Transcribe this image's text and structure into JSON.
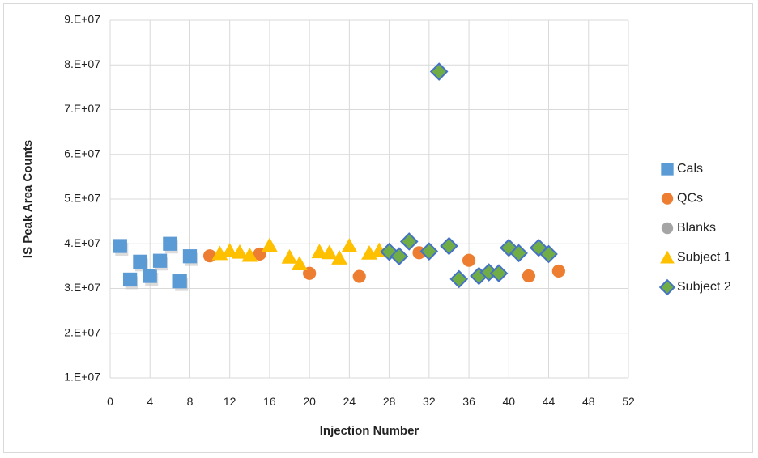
{
  "chart_data": {
    "type": "scatter",
    "title": "",
    "xlabel": "Injection Number",
    "ylabel": "IS Peak Area Counts",
    "xlim": [
      0,
      52
    ],
    "ylim": [
      10000000,
      90000000
    ],
    "x_ticks": [
      0,
      4,
      8,
      12,
      16,
      20,
      24,
      28,
      32,
      36,
      40,
      44,
      48,
      52
    ],
    "x_tick_labels": [
      "0",
      "4",
      "8",
      "12",
      "16",
      "20",
      "24",
      "28",
      "32",
      "36",
      "40",
      "44",
      "48",
      "52"
    ],
    "y_ticks": [
      10000000,
      20000000,
      30000000,
      40000000,
      50000000,
      60000000,
      70000000,
      80000000,
      90000000
    ],
    "y_tick_labels": [
      "1.E+07",
      "2.E+07",
      "3.E+07",
      "4.E+07",
      "5.E+07",
      "6.E+07",
      "7.E+07",
      "8.E+07",
      "9.E+07"
    ],
    "grid": true,
    "legend_position": "right",
    "series": [
      {
        "name": "Cals",
        "marker": "square",
        "color": "#5b9bd5",
        "points": [
          [
            1,
            39.5
          ],
          [
            2,
            32.0
          ],
          [
            3,
            36.0
          ],
          [
            4,
            32.8
          ],
          [
            5,
            36.2
          ],
          [
            6,
            40.0
          ],
          [
            7,
            31.6
          ],
          [
            8,
            37.2
          ]
        ]
      },
      {
        "name": "QCs",
        "marker": "circle",
        "color": "#ed7d31",
        "points": [
          [
            10,
            37.3
          ],
          [
            15,
            37.7
          ],
          [
            20,
            33.4
          ],
          [
            25,
            32.7
          ],
          [
            31,
            38.0
          ],
          [
            36,
            36.3
          ],
          [
            42,
            32.8
          ],
          [
            45,
            33.9
          ]
        ]
      },
      {
        "name": "Blanks",
        "marker": "circle",
        "color": "#a5a5a5",
        "points": []
      },
      {
        "name": "Subject 1",
        "marker": "triangle",
        "color": "#ffc000",
        "points": [
          [
            11,
            37.8
          ],
          [
            12,
            38.4
          ],
          [
            13,
            38.1
          ],
          [
            14,
            37.4
          ],
          [
            16,
            39.6
          ],
          [
            18,
            37.0
          ],
          [
            19,
            35.5
          ],
          [
            21,
            38.2
          ],
          [
            22,
            38.0
          ],
          [
            23,
            36.8
          ],
          [
            24,
            39.5
          ],
          [
            26,
            37.9
          ],
          [
            27,
            38.5
          ]
        ]
      },
      {
        "name": "Subject 2",
        "marker": "diamond",
        "color": "#70ad47",
        "stroke": "#4472c4",
        "points": [
          [
            28,
            38.2
          ],
          [
            29,
            37.2
          ],
          [
            30,
            40.5
          ],
          [
            32,
            38.3
          ],
          [
            33,
            78.5
          ],
          [
            34,
            39.5
          ],
          [
            35,
            32.1
          ],
          [
            37,
            32.8
          ],
          [
            38,
            33.6
          ],
          [
            39,
            33.4
          ],
          [
            40,
            39.1
          ],
          [
            41,
            37.9
          ],
          [
            43,
            39.1
          ],
          [
            44,
            37.7
          ]
        ]
      }
    ],
    "y_unit_note": "point y values in millions of counts"
  }
}
